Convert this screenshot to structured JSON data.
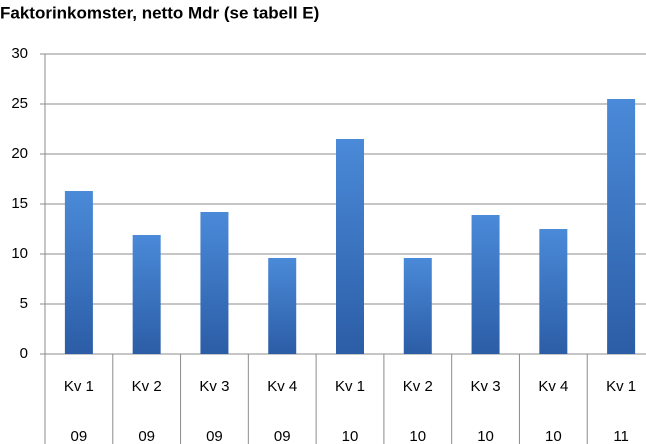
{
  "chart_data": {
    "type": "bar",
    "title": "Faktorinkomster, netto Mdr (se tabell E)",
    "categories": [
      "Kv 1",
      "Kv 2",
      "Kv 3",
      "Kv 4",
      "Kv 1",
      "Kv 2",
      "Kv 3",
      "Kv 4",
      "Kv 1"
    ],
    "years": [
      "09",
      "09",
      "09",
      "09",
      "10",
      "10",
      "10",
      "10",
      "11"
    ],
    "values": [
      16.3,
      11.9,
      14.2,
      9.6,
      21.5,
      9.6,
      13.9,
      12.5,
      25.5
    ],
    "color": "#3a75c4",
    "ylim": [
      0,
      30
    ],
    "yticks": [
      0,
      5,
      10,
      15,
      20,
      25,
      30
    ],
    "grid": true
  }
}
